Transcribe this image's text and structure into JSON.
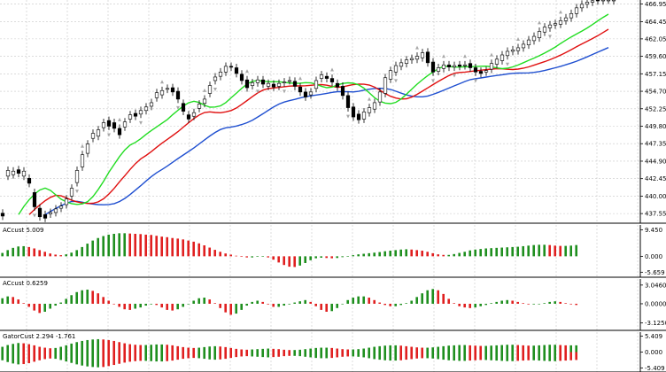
{
  "colors": {
    "background": "#ffffff",
    "grid": "#c8c8c8",
    "frame": "#000000",
    "candle_up": "#ffffff",
    "candle_down": "#000000",
    "jaw": "#1f4fd0",
    "teeth": "#e01010",
    "lips": "#22dd22",
    "bar_up": "#1f8f1f",
    "bar_down": "#e02020",
    "fractal": "#a8a8a8"
  },
  "chart_data": [
    {
      "panel": "price",
      "type": "candlestick",
      "y_ticks": [
        "466.95",
        "464.45",
        "462.05",
        "459.60",
        "457.15",
        "454.70",
        "452.25",
        "449.80",
        "447.35",
        "444.90",
        "442.45",
        "440.00",
        "437.55"
      ],
      "ylim": [
        436.2,
        467.5
      ],
      "bars_visible": 116,
      "close": [
        437.2,
        443.6,
        443.5,
        443.2,
        443.5,
        441.8,
        438.5,
        437.1,
        436.9,
        437.7,
        438.2,
        438.6,
        439.6,
        441.1,
        443.6,
        445.8,
        447.3,
        448.8,
        449.3,
        450.3,
        449.8,
        449.5,
        448.6,
        450.4,
        451.4,
        451.2,
        452.0,
        452.5,
        453.1,
        454.5,
        454.8,
        455.1,
        454.6,
        453.6,
        451.9,
        450.8,
        451.7,
        452.9,
        453.6,
        455.5,
        456.7,
        457.4,
        458.2,
        458.1,
        457.2,
        456.2,
        455.2,
        455.9,
        456.3,
        455.7,
        455.8,
        455.3,
        455.8,
        456.0,
        456.2,
        455.4,
        454.6,
        453.9,
        454.6,
        456.2,
        457.0,
        456.5,
        456.0,
        455.3,
        454.1,
        452.4,
        451.1,
        450.7,
        451.8,
        452.4,
        453.1,
        454.6,
        456.6,
        457.6,
        458.3,
        458.7,
        459.1,
        459.3,
        459.6,
        460.1,
        458.7,
        457.4,
        458.0,
        458.4,
        458.1,
        458.3,
        458.2,
        458.4,
        458.0,
        457.4,
        457.2,
        457.6,
        458.6,
        459.2,
        459.8,
        460.3,
        460.5,
        460.8,
        461.3,
        461.9,
        462.4,
        463.1,
        463.7,
        464.0,
        464.2,
        464.6,
        465.0,
        465.6,
        466.4,
        466.9,
        467.2,
        467.4,
        467.4,
        467.5,
        467.5,
        467.5
      ],
      "open": [
        437.6,
        442.8,
        443.0,
        443.7,
        442.8,
        442.5,
        440.5,
        438.3,
        437.4,
        437.5,
        437.7,
        438.3,
        438.8,
        440.0,
        441.9,
        444.1,
        446.0,
        448.1,
        448.4,
        449.6,
        450.6,
        450.3,
        449.5,
        449.7,
        450.8,
        451.6,
        451.5,
        452.0,
        452.6,
        453.8,
        454.2,
        455.0,
        455.2,
        454.7,
        453.0,
        451.4,
        451.2,
        452.3,
        453.0,
        454.4,
        456.2,
        456.8,
        457.4,
        458.2,
        458.0,
        457.1,
        456.3,
        455.5,
        455.9,
        456.3,
        455.4,
        455.7,
        455.4,
        455.9,
        456.2,
        456.1,
        455.3,
        454.6,
        454.2,
        455.1,
        456.5,
        456.8,
        456.5,
        455.8,
        455.4,
        454.1,
        452.5,
        451.5,
        450.8,
        451.7,
        452.2,
        453.2,
        454.4,
        456.4,
        457.4,
        458.2,
        458.6,
        459.1,
        459.2,
        459.4,
        460.2,
        458.8,
        457.5,
        457.9,
        458.4,
        458.1,
        458.4,
        458.3,
        458.6,
        458.0,
        457.5,
        457.4,
        457.8,
        458.5,
        459.0,
        459.7,
        460.3,
        460.4,
        460.8,
        461.2,
        461.8,
        462.2,
        463.0,
        463.6,
        464.0,
        464.1,
        464.6,
        465.0,
        465.6,
        466.4,
        466.9,
        467.2,
        467.5,
        467.4,
        467.5,
        467.4
      ],
      "fractals_up_at": [
        15,
        22,
        30,
        38,
        46,
        56,
        62,
        69,
        78,
        83,
        87,
        92,
        97,
        101,
        105,
        109
      ],
      "fractals_down_at": [
        6,
        14,
        20,
        26,
        33,
        40,
        48,
        53,
        65,
        74,
        81,
        85,
        89,
        95,
        103
      ],
      "lines": [
        {
          "name": "jaw",
          "offset": 8,
          "color_key": "jaw"
        },
        {
          "name": "teeth",
          "offset": 5,
          "color_key": "teeth"
        },
        {
          "name": "lips",
          "offset": 3,
          "color_key": "lips"
        }
      ]
    },
    {
      "panel": "ac_1",
      "type": "bar",
      "title": "ACcust 5.009",
      "y_ticks": [
        "9.450",
        "0.000",
        "-5.659"
      ],
      "ylim": [
        -6.5,
        10.2
      ],
      "baseline": 0,
      "values": [
        1.2,
        2.2,
        3.0,
        3.5,
        3.6,
        3.3,
        2.8,
        2.2,
        1.6,
        1.0,
        0.6,
        0.4,
        0.7,
        1.3,
        2.2,
        3.3,
        4.5,
        5.6,
        6.5,
        7.2,
        7.7,
        8.0,
        8.2,
        8.2,
        8.1,
        8.0,
        7.9,
        7.7,
        7.6,
        7.3,
        7.0,
        6.8,
        6.5,
        6.3,
        6.0,
        5.6,
        5.2,
        4.6,
        3.9,
        3.1,
        2.3,
        1.6,
        1.0,
        0.6,
        0.2,
        -0.2,
        -0.4,
        -0.4,
        -0.2,
        -0.1,
        -0.4,
        -1.2,
        -2.2,
        -3.1,
        -3.7,
        -3.8,
        -3.3,
        -2.4,
        -1.4,
        -0.7,
        -0.5,
        -0.6,
        -0.7,
        -0.6,
        -0.3,
        0.1,
        0.4,
        0.7,
        0.9,
        1.1,
        1.3,
        1.5,
        1.8,
        2.0,
        2.2,
        2.4,
        2.5,
        2.4,
        2.2,
        2.0,
        1.6,
        1.1,
        0.7,
        0.5,
        0.5,
        0.8,
        1.2,
        1.6,
        2.1,
        2.4,
        2.6,
        2.8,
        2.9,
        3.0,
        3.1,
        3.2,
        3.3,
        3.4,
        3.6,
        3.8,
        4.0,
        4.1,
        4.1,
        4.0,
        3.8,
        3.7,
        3.7,
        3.8,
        4.0,
        4.3,
        4.6,
        4.8,
        5.0,
        5.0,
        5.0,
        5.0
      ]
    },
    {
      "panel": "ac_2",
      "type": "bar",
      "title": "ACcust 0.6259",
      "y_ticks": [
        "3.0460",
        "0.0000",
        "-3.1250"
      ],
      "ylim": [
        -3.9,
        3.6
      ],
      "baseline": 0,
      "values": [
        0.9,
        1.2,
        1.1,
        0.7,
        0.1,
        -0.5,
        -1.1,
        -1.5,
        -1.3,
        -0.8,
        -0.3,
        0.2,
        0.8,
        1.4,
        1.9,
        2.2,
        2.3,
        2.1,
        1.7,
        1.1,
        0.5,
        0.0,
        -0.5,
        -0.9,
        -1.0,
        -0.8,
        -0.6,
        -0.3,
        -0.1,
        -0.2,
        -0.6,
        -1.0,
        -1.1,
        -0.9,
        -0.5,
        0.0,
        0.5,
        0.9,
        1.0,
        0.7,
        0.1,
        -0.7,
        -1.4,
        -1.8,
        -1.6,
        -1.0,
        -0.3,
        0.3,
        0.5,
        0.3,
        -0.1,
        -0.5,
        -0.5,
        -0.3,
        -0.1,
        0.2,
        0.4,
        0.6,
        0.3,
        -0.4,
        -1.0,
        -1.3,
        -1.2,
        -0.7,
        0.0,
        0.6,
        1.0,
        1.2,
        1.2,
        1.0,
        0.6,
        0.2,
        -0.2,
        -0.4,
        -0.4,
        -0.2,
        0.1,
        0.5,
        1.1,
        1.7,
        2.2,
        2.4,
        2.2,
        1.6,
        0.8,
        0.1,
        -0.4,
        -0.6,
        -0.7,
        -0.6,
        -0.4,
        -0.2,
        0.1,
        0.3,
        0.5,
        0.6,
        0.5,
        0.3,
        0.1,
        -0.1,
        -0.1,
        0.0,
        0.1,
        0.3,
        0.4,
        0.3,
        0.1,
        -0.1,
        -0.2,
        -0.2,
        -0.1,
        0.1,
        0.3,
        0.5,
        0.6,
        0.6
      ]
    },
    {
      "panel": "gator",
      "type": "bar",
      "title": "GatorCust 2.294 -1.761",
      "y_ticks": [
        "5.409",
        "0.000",
        "-5.409"
      ],
      "ylim": [
        -5.9,
        5.9
      ],
      "baseline": 0,
      "series": [
        {
          "name": "upper",
          "values": [
            1.8,
            2.4,
            2.8,
            3.1,
            3.0,
            2.7,
            2.3,
            1.8,
            1.5,
            1.3,
            1.4,
            1.8,
            2.3,
            2.9,
            3.4,
            3.8,
            4.1,
            4.3,
            4.4,
            4.3,
            4.1,
            3.8,
            3.4,
            3.0,
            2.7,
            2.5,
            2.4,
            2.4,
            2.5,
            2.6,
            2.6,
            2.5,
            2.3,
            2.0,
            1.7,
            1.5,
            1.4,
            1.5,
            1.7,
            1.9,
            2.0,
            1.9,
            1.7,
            1.4,
            1.1,
            0.9,
            0.8,
            0.9,
            1.0,
            1.1,
            1.2,
            1.1,
            1.0,
            0.8,
            0.7,
            0.7,
            0.8,
            1.0,
            1.2,
            1.4,
            1.5,
            1.5,
            1.4,
            1.2,
            1.0,
            0.9,
            0.9,
            1.0,
            1.2,
            1.5,
            1.8,
            2.0,
            2.2,
            2.3,
            2.3,
            2.2,
            2.0,
            1.8,
            1.6,
            1.5,
            1.5,
            1.6,
            1.8,
            2.0,
            2.2,
            2.3,
            2.4,
            2.4,
            2.3,
            2.2,
            2.1,
            2.1,
            2.2,
            2.3,
            2.4,
            2.5,
            2.5,
            2.4,
            2.3,
            2.2,
            2.2,
            2.3,
            2.4,
            2.5,
            2.5,
            2.4,
            2.3,
            2.3,
            2.3,
            2.3,
            2.3,
            2.3,
            2.3,
            2.3,
            2.3,
            2.3
          ]
        },
        {
          "name": "lower",
          "values": [
            -2.8,
            -3.4,
            -3.9,
            -4.2,
            -4.1,
            -3.8,
            -3.3,
            -2.8,
            -2.4,
            -2.2,
            -2.3,
            -2.7,
            -3.2,
            -3.7,
            -4.2,
            -4.6,
            -4.9,
            -5.1,
            -5.2,
            -5.1,
            -4.8,
            -4.4,
            -4.0,
            -3.6,
            -3.3,
            -3.1,
            -3.0,
            -3.0,
            -3.1,
            -3.2,
            -3.2,
            -3.1,
            -2.9,
            -2.6,
            -2.3,
            -2.1,
            -2.0,
            -2.1,
            -2.3,
            -2.5,
            -2.6,
            -2.5,
            -2.3,
            -2.0,
            -1.7,
            -1.5,
            -1.4,
            -1.5,
            -1.6,
            -1.7,
            -1.8,
            -1.7,
            -1.6,
            -1.4,
            -1.3,
            -1.3,
            -1.4,
            -1.6,
            -1.8,
            -2.0,
            -2.1,
            -2.1,
            -2.0,
            -1.8,
            -1.6,
            -1.5,
            -1.5,
            -1.6,
            -1.8,
            -2.1,
            -2.4,
            -2.6,
            -2.8,
            -2.9,
            -2.9,
            -2.8,
            -2.6,
            -2.4,
            -2.2,
            -2.1,
            -2.1,
            -2.2,
            -2.4,
            -2.6,
            -2.8,
            -2.9,
            -3.0,
            -3.0,
            -2.9,
            -2.8,
            -2.7,
            -2.7,
            -2.8,
            -2.9,
            -3.0,
            -3.1,
            -3.1,
            -3.0,
            -2.9,
            -2.8,
            -2.8,
            -2.9,
            -3.0,
            -3.1,
            -3.1,
            -3.0,
            -2.9,
            -2.8,
            -2.7,
            -2.6,
            -2.5,
            -2.4,
            -2.2,
            -2.0,
            -1.9,
            -1.8
          ]
        }
      ]
    }
  ]
}
